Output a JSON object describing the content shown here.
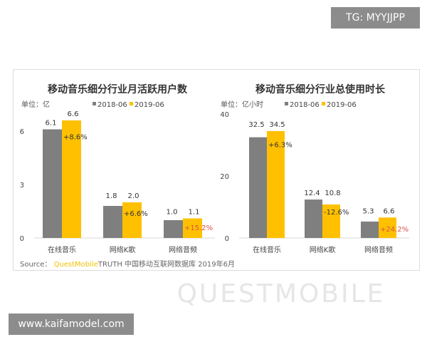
{
  "watermark_top": "TG: MYYJJPP",
  "watermark_bottom": "www.kaifamodel.com",
  "background_watermark": "QUESTMOBILE",
  "source": {
    "prefix": "Source：",
    "brand": "QuestMobile",
    "rest": "TRUTH 中国移动互联网数据库 2019年6月"
  },
  "colors": {
    "2018-06": "#7f7f7f",
    "2019-06": "#ffc000",
    "growth_positive_text": "#d9534f",
    "growth_text": "#333333"
  },
  "chart_data": [
    {
      "type": "bar",
      "title": "移动音乐细分行业月活跃用户数",
      "unit": "单位：亿",
      "categories": [
        "在线音乐",
        "网络K歌",
        "网络音频"
      ],
      "series": [
        {
          "name": "2018-06",
          "values": [
            6.1,
            1.8,
            1.0
          ],
          "labels": [
            "6.1",
            "1.8",
            "1.0"
          ]
        },
        {
          "name": "2019-06",
          "values": [
            6.6,
            2.0,
            1.1
          ],
          "labels": [
            "6.6",
            "2.0",
            "1.1"
          ]
        }
      ],
      "growth": [
        "+8.6%",
        "+6.6%",
        "+15.2%"
      ],
      "yticks": [
        "0",
        "3",
        "6"
      ],
      "ylim": [
        0,
        7
      ],
      "legend": "top",
      "grid": false
    },
    {
      "type": "bar",
      "title": "移动音乐细分行业总使用时长",
      "unit": "单位：亿小时",
      "categories": [
        "在线音乐",
        "网络K歌",
        "网络音频"
      ],
      "series": [
        {
          "name": "2018-06",
          "values": [
            32.5,
            12.4,
            5.3
          ],
          "labels": [
            "32.5",
            "12.4",
            "5.3"
          ]
        },
        {
          "name": "2019-06",
          "values": [
            34.5,
            10.8,
            6.6
          ],
          "labels": [
            "34.5",
            "10.8",
            "6.6"
          ]
        }
      ],
      "growth": [
        "+6.3%",
        "-12.6%",
        "+24.2%"
      ],
      "yticks": [
        "0",
        "20",
        "40"
      ],
      "ylim": [
        0,
        40
      ],
      "legend": "top",
      "grid": false
    }
  ]
}
